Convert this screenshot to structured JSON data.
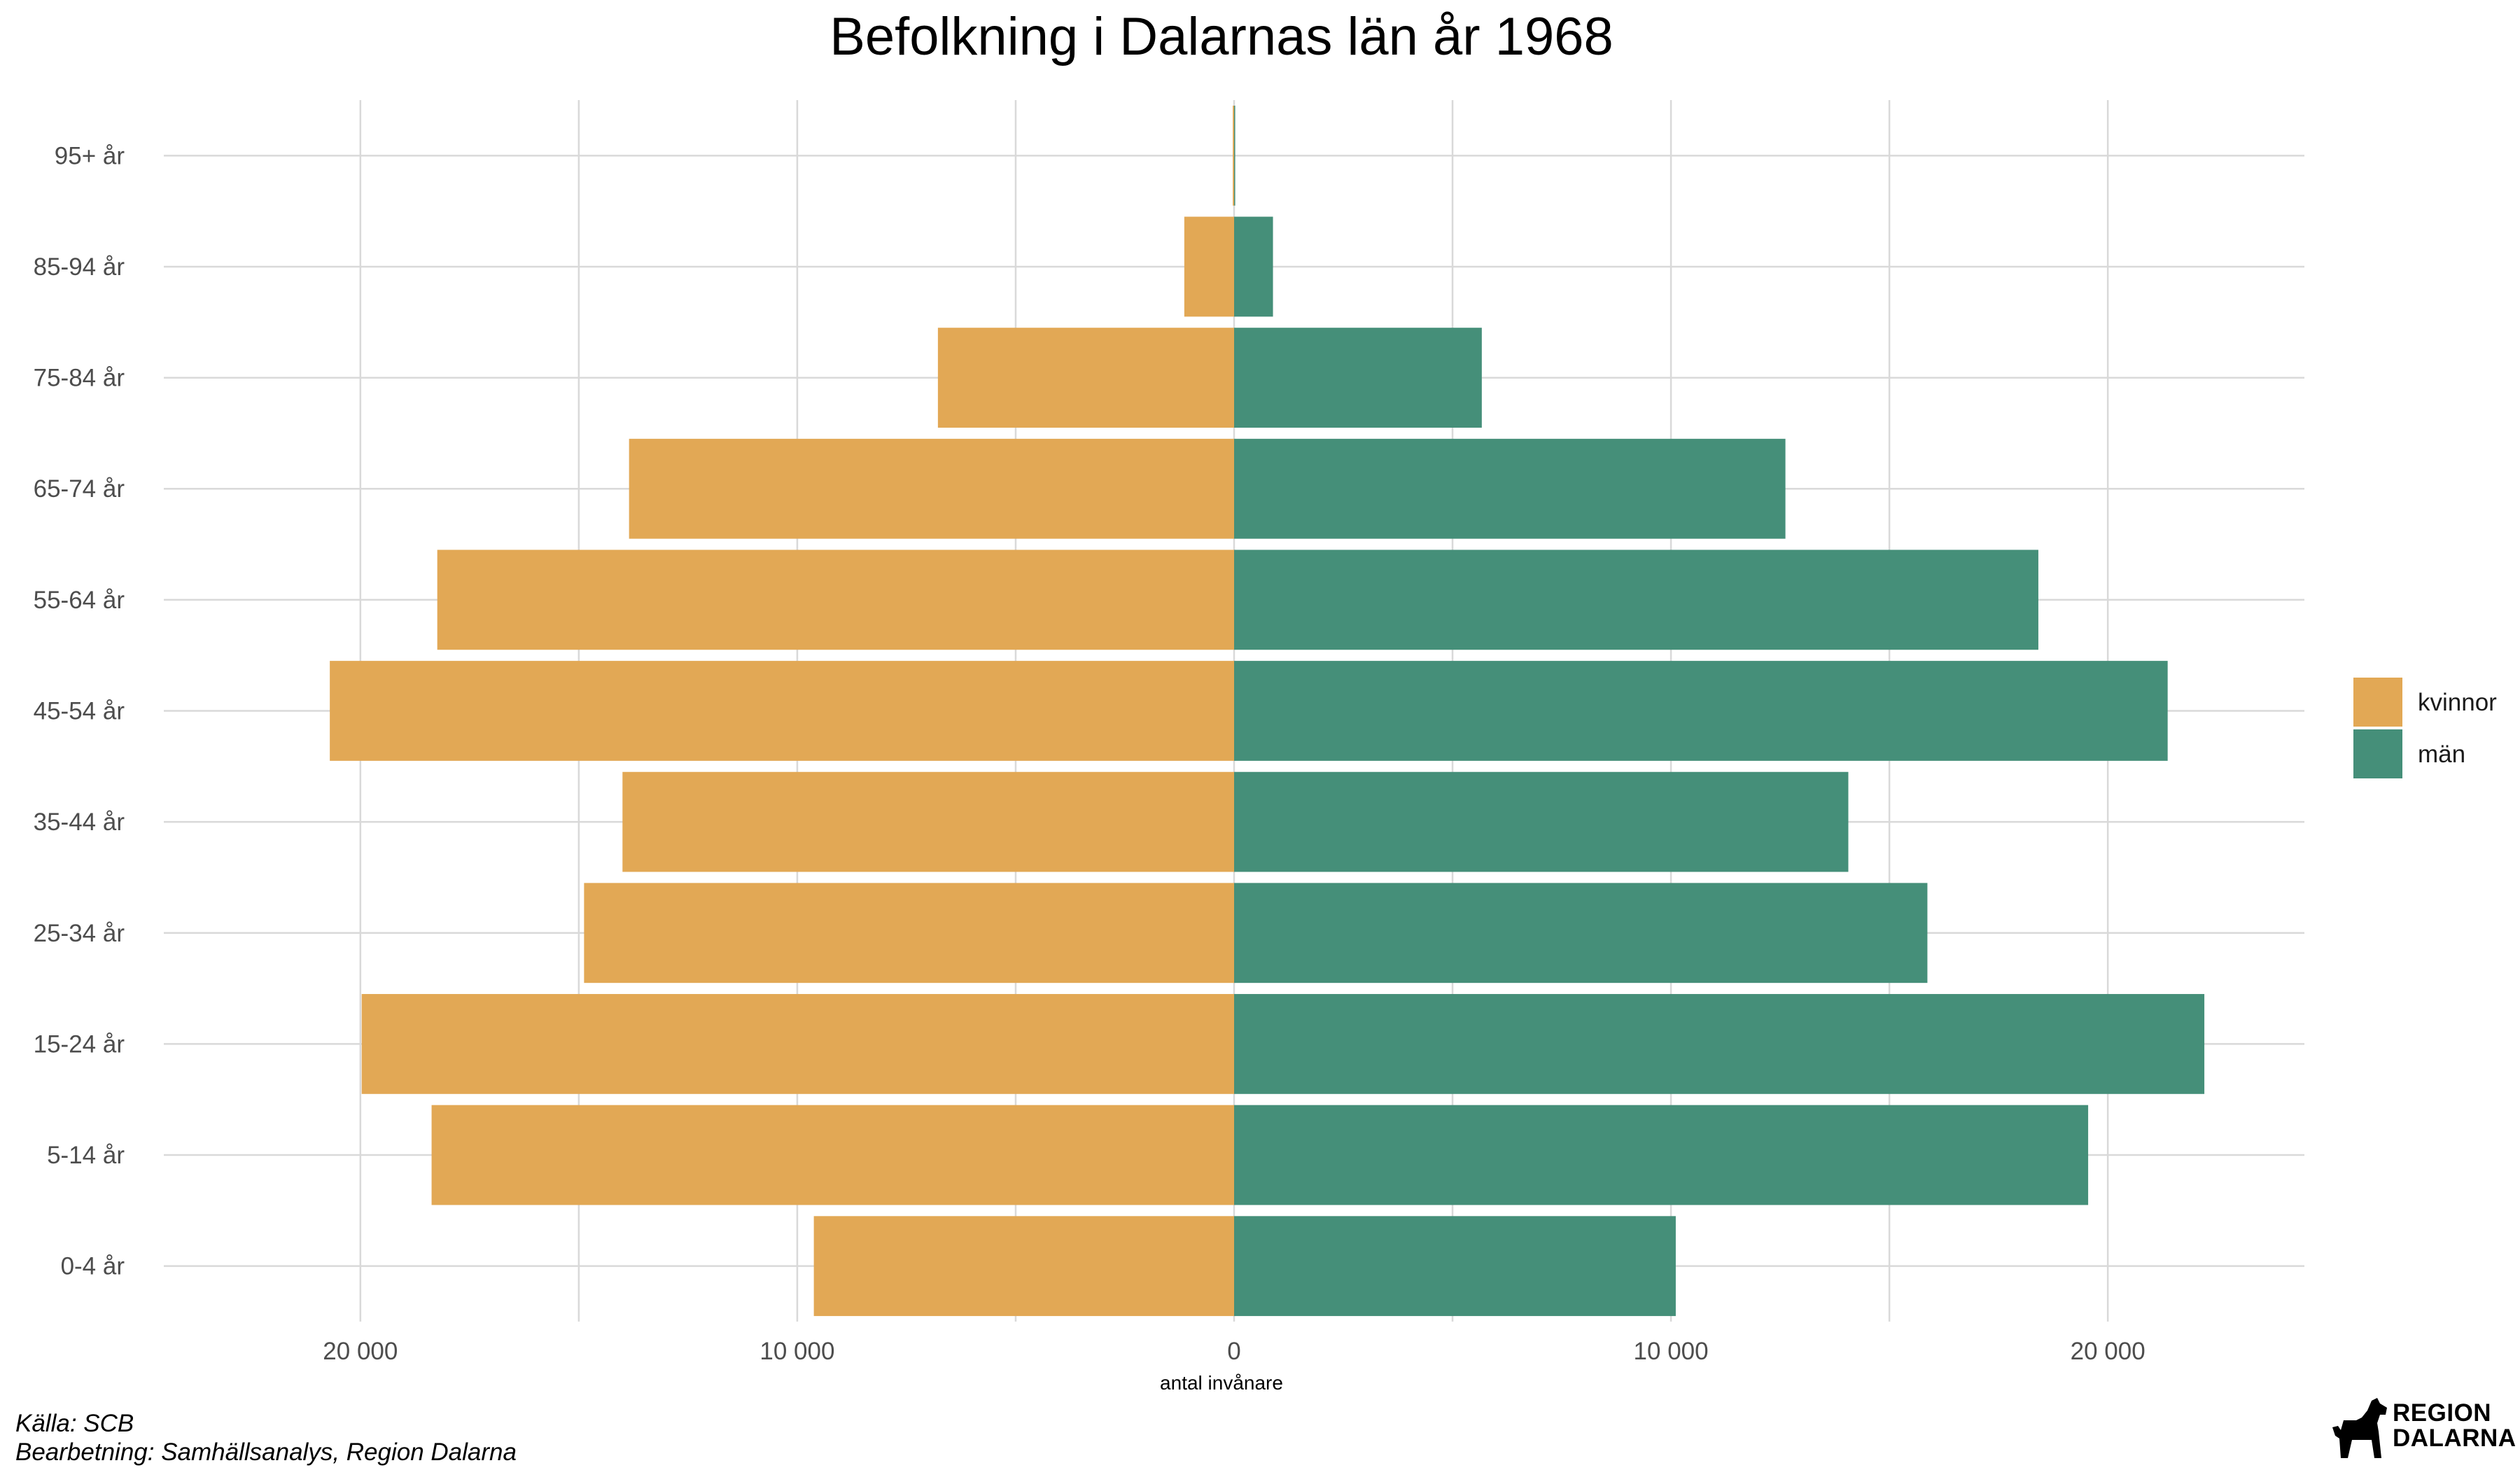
{
  "chart_data": {
    "type": "bar",
    "orientation": "horizontal",
    "layout": "population-pyramid",
    "title": "Befolkning i Dalarnas län år 1968",
    "xlabel": "antal invånare",
    "ylabel": "",
    "categories": [
      "0-4 år",
      "5-14 år",
      "15-24 år",
      "25-34 år",
      "35-44 år",
      "45-54 år",
      "55-64 år",
      "65-74 år",
      "75-84 år",
      "85-94 år",
      "95+ år"
    ],
    "series": [
      {
        "name": "kvinnor",
        "color": "#E2A855",
        "side": "left",
        "values": [
          9620,
          18370,
          19970,
          14880,
          14000,
          20700,
          18240,
          13850,
          6780,
          1140,
          30
        ]
      },
      {
        "name": "män",
        "color": "#458F79",
        "side": "right",
        "values": [
          10110,
          19550,
          22210,
          15870,
          14060,
          21370,
          18410,
          12620,
          5670,
          890,
          25
        ]
      }
    ],
    "xlim": [
      -24500,
      24500
    ],
    "x_ticks": [
      -20000,
      -10000,
      0,
      10000,
      20000
    ],
    "x_tick_labels": [
      "20 000",
      "10 000",
      "0",
      "10 000",
      "20 000"
    ],
    "grid": true,
    "legend_position": "right"
  },
  "footer": {
    "source": "Källa: SCB",
    "processing": "Bearbetning: Samhällsanalys, Region Dalarna"
  },
  "logo": {
    "line1": "REGION",
    "line2": "DALARNA",
    "icon": "dala-horse-icon"
  }
}
